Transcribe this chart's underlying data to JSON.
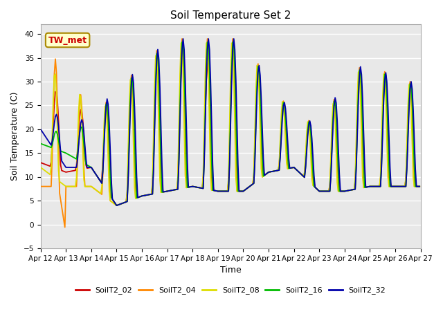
{
  "title": "Soil Temperature Set 2",
  "xlabel": "Time",
  "ylabel": "Soil Temperature (C)",
  "ylim": [
    -5,
    42
  ],
  "yticks": [
    -5,
    0,
    5,
    10,
    15,
    20,
    25,
    30,
    35,
    40
  ],
  "series_colors": {
    "SoilT2_02": "#cc0000",
    "SoilT2_04": "#ff8800",
    "SoilT2_08": "#dddd00",
    "SoilT2_16": "#00bb00",
    "SoilT2_32": "#0000aa"
  },
  "annotation_text": "TW_met",
  "bg_color": "#ffffff",
  "plot_bg_color": "#e8e8e8",
  "grid_color": "#ffffff",
  "line_width": 1.3,
  "title_fontsize": 11,
  "axis_fontsize": 9,
  "tick_fontsize": 7.5
}
